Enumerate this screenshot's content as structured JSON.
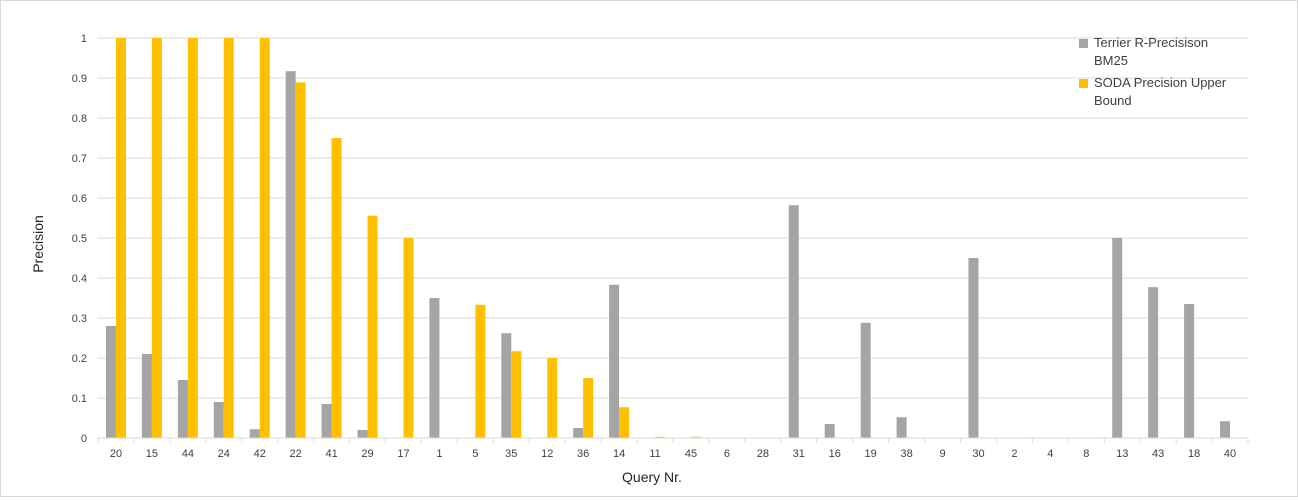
{
  "chart_data": {
    "type": "bar",
    "title": "",
    "xlabel": "Query Nr.",
    "ylabel": "Precision",
    "ylim": [
      0,
      1
    ],
    "yticks": [
      "0",
      "0.1",
      "0.2",
      "0.3",
      "0.4",
      "0.5",
      "0.6",
      "0.7",
      "0.8",
      "0.9",
      "1"
    ],
    "grid": true,
    "legend_position": "top-right",
    "categories": [
      "20",
      "15",
      "44",
      "24",
      "42",
      "22",
      "41",
      "29",
      "17",
      "1",
      "5",
      "35",
      "12",
      "36",
      "14",
      "11",
      "45",
      "6",
      "28",
      "31",
      "16",
      "19",
      "38",
      "9",
      "30",
      "2",
      "4",
      "8",
      "13",
      "43",
      "18",
      "40"
    ],
    "series": [
      {
        "name": "Terrier R-Precisison BM25",
        "legend_lines": [
          "Terrier R-Precisison",
          "BM25"
        ],
        "color": "#a5a5a5",
        "values": [
          0.28,
          0.21,
          0.145,
          0.09,
          0.022,
          0.917,
          0.085,
          0.02,
          0,
          0.35,
          0,
          0.262,
          0,
          0.025,
          0.383,
          0,
          0,
          0,
          0,
          0.582,
          0.035,
          0.288,
          0.052,
          0,
          0.45,
          0,
          0,
          0,
          0.5,
          0.377,
          0.335,
          0.042
        ]
      },
      {
        "name": "SODA Precision Upper Bound",
        "legend_lines": [
          "SODA Precision Upper",
          "Bound"
        ],
        "color": "#ffc000",
        "values": [
          1,
          1,
          1,
          1,
          1,
          0.889,
          0.75,
          0.556,
          0.5,
          0,
          0.333,
          0.217,
          0.2,
          0.15,
          0.077,
          0.003,
          0.003,
          0,
          0,
          0,
          0,
          0,
          0,
          0,
          0,
          0,
          0,
          0,
          0,
          0,
          0,
          0
        ]
      }
    ]
  }
}
